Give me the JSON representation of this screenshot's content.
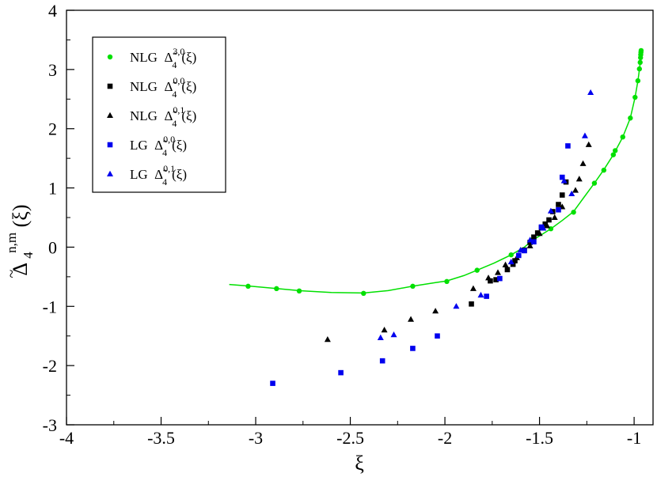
{
  "chart_data": {
    "type": "scatter",
    "xlabel": "ξ",
    "ylabel": {
      "symbol": "Δ",
      "sub": "4",
      "sup": "n,m",
      "arg": "(ξ)"
    },
    "xlim": [
      -4,
      -0.9
    ],
    "ylim": [
      -3,
      4
    ],
    "x_ticks": [
      -4,
      -3.5,
      -3,
      -2.5,
      -2,
      -1.5,
      -1
    ],
    "y_ticks": [
      -3,
      -2,
      -1,
      0,
      1,
      2,
      3,
      4
    ],
    "grid": false,
    "legend_position": "top-left",
    "series": [
      {
        "name": "NLG Δ̃4^3,0(ξ)",
        "legend": {
          "prefix": "NLG",
          "sup": "3,0",
          "sub": "4"
        },
        "marker": "circle",
        "color": "#00e000",
        "points": [
          [
            -3.04,
            -0.66
          ],
          [
            -2.89,
            -0.7
          ],
          [
            -2.77,
            -0.74
          ],
          [
            -2.43,
            -0.78
          ],
          [
            -2.17,
            -0.66
          ],
          [
            -1.99,
            -0.58
          ],
          [
            -1.83,
            -0.39
          ],
          [
            -1.65,
            -0.13
          ],
          [
            -1.54,
            0.12
          ],
          [
            -1.44,
            0.31
          ],
          [
            -1.32,
            0.59
          ],
          [
            -1.21,
            1.08
          ],
          [
            -1.16,
            1.3
          ],
          [
            -1.11,
            1.56
          ],
          [
            -1.1,
            1.63
          ],
          [
            -1.06,
            1.86
          ],
          [
            -1.02,
            2.18
          ],
          [
            -0.995,
            2.53
          ],
          [
            -0.98,
            2.81
          ],
          [
            -0.972,
            3.01
          ],
          [
            -0.968,
            3.12
          ],
          [
            -0.966,
            3.2
          ],
          [
            -0.965,
            3.25
          ],
          [
            -0.964,
            3.29
          ],
          [
            -0.963,
            3.32
          ]
        ]
      },
      {
        "name": "NLG Δ̃4^0,0(ξ)",
        "legend": {
          "prefix": "NLG",
          "sup": "0,0",
          "sub": "4"
        },
        "marker": "square",
        "color": "#000000",
        "points": [
          [
            -1.86,
            -0.96
          ],
          [
            -1.76,
            -0.57
          ],
          [
            -1.73,
            -0.55
          ],
          [
            -1.67,
            -0.38
          ],
          [
            -1.64,
            -0.29
          ],
          [
            -1.63,
            -0.23
          ],
          [
            -1.58,
            -0.05
          ],
          [
            -1.55,
            0.08
          ],
          [
            -1.53,
            0.17
          ],
          [
            -1.51,
            0.24
          ],
          [
            -1.49,
            0.33
          ],
          [
            -1.47,
            0.39
          ],
          [
            -1.45,
            0.46
          ],
          [
            -1.43,
            0.6
          ],
          [
            -1.4,
            0.72
          ],
          [
            -1.38,
            0.88
          ],
          [
            -1.36,
            1.1
          ]
        ]
      },
      {
        "name": "NLG Δ̃4^0,1(ξ)",
        "legend": {
          "prefix": "NLG",
          "sup": "0,1",
          "sub": "4"
        },
        "marker": "triangle",
        "color": "#000000",
        "points": [
          [
            -2.62,
            -1.56
          ],
          [
            -2.32,
            -1.4
          ],
          [
            -2.18,
            -1.22
          ],
          [
            -2.05,
            -1.08
          ],
          [
            -1.85,
            -0.7
          ],
          [
            -1.77,
            -0.52
          ],
          [
            -1.72,
            -0.43
          ],
          [
            -1.68,
            -0.3
          ],
          [
            -1.62,
            -0.18
          ],
          [
            -1.55,
            0.02
          ],
          [
            -1.5,
            0.23
          ],
          [
            -1.46,
            0.36
          ],
          [
            -1.42,
            0.5
          ],
          [
            -1.38,
            0.68
          ],
          [
            -1.31,
            0.96
          ],
          [
            -1.29,
            1.15
          ],
          [
            -1.27,
            1.41
          ],
          [
            -1.24,
            1.73
          ]
        ]
      },
      {
        "name": "LG Δ̃4^0,0(ξ)",
        "legend": {
          "prefix": "LG",
          "sup": "0,0",
          "sub": "4"
        },
        "marker": "square",
        "color": "#0000ee",
        "points": [
          [
            -2.91,
            -2.3
          ],
          [
            -2.55,
            -2.12
          ],
          [
            -2.33,
            -1.92
          ],
          [
            -2.17,
            -1.71
          ],
          [
            -2.04,
            -1.5
          ],
          [
            -1.78,
            -0.83
          ],
          [
            -1.71,
            -0.53
          ],
          [
            -1.61,
            -0.14
          ],
          [
            -1.58,
            -0.06
          ],
          [
            -1.53,
            0.09
          ],
          [
            -1.49,
            0.34
          ],
          [
            -1.4,
            0.63
          ],
          [
            -1.38,
            1.18
          ],
          [
            -1.35,
            1.71
          ]
        ]
      },
      {
        "name": "LG Δ̃4^0,1(ξ)",
        "legend": {
          "prefix": "LG",
          "sup": "0,1",
          "sub": "4"
        },
        "marker": "triangle",
        "color": "#0000ee",
        "points": [
          [
            -2.34,
            -1.53
          ],
          [
            -2.27,
            -1.48
          ],
          [
            -1.94,
            -1.0
          ],
          [
            -1.81,
            -0.81
          ],
          [
            -1.65,
            -0.25
          ],
          [
            -1.6,
            -0.05
          ],
          [
            -1.55,
            0.12
          ],
          [
            -1.48,
            0.32
          ],
          [
            -1.44,
            0.61
          ],
          [
            -1.37,
            1.12
          ],
          [
            -1.33,
            0.9
          ],
          [
            -1.26,
            1.88
          ],
          [
            -1.23,
            2.61
          ]
        ]
      }
    ],
    "fit_curve": {
      "color": "#00e000",
      "points": [
        [
          -3.14,
          -0.63
        ],
        [
          -3.04,
          -0.655
        ],
        [
          -2.89,
          -0.7
        ],
        [
          -2.77,
          -0.735
        ],
        [
          -2.6,
          -0.765
        ],
        [
          -2.43,
          -0.775
        ],
        [
          -2.3,
          -0.735
        ],
        [
          -2.17,
          -0.66
        ],
        [
          -2.05,
          -0.6
        ],
        [
          -1.99,
          -0.57
        ],
        [
          -1.9,
          -0.48
        ],
        [
          -1.83,
          -0.39
        ],
        [
          -1.74,
          -0.27
        ],
        [
          -1.65,
          -0.13
        ],
        [
          -1.58,
          0.0
        ],
        [
          -1.54,
          0.11
        ],
        [
          -1.49,
          0.21
        ],
        [
          -1.44,
          0.31
        ],
        [
          -1.38,
          0.45
        ],
        [
          -1.32,
          0.6
        ],
        [
          -1.27,
          0.82
        ],
        [
          -1.21,
          1.08
        ],
        [
          -1.16,
          1.31
        ],
        [
          -1.11,
          1.56
        ],
        [
          -1.06,
          1.86
        ],
        [
          -1.02,
          2.18
        ],
        [
          -0.995,
          2.53
        ],
        [
          -0.98,
          2.81
        ],
        [
          -0.97,
          3.05
        ],
        [
          -0.966,
          3.2
        ],
        [
          -0.964,
          3.28
        ],
        [
          -0.963,
          3.33
        ]
      ]
    }
  }
}
